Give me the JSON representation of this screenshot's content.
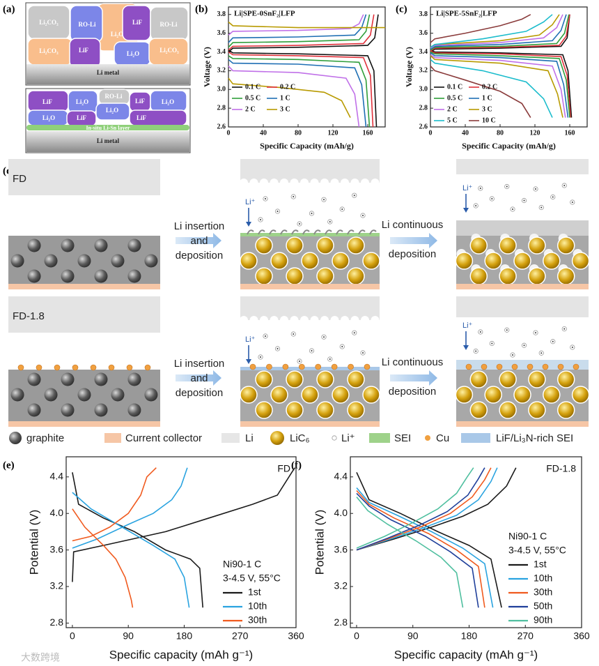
{
  "panel_labels": [
    "(a)",
    "(b)",
    "(c)",
    "(d)",
    "(e)",
    "(f)"
  ],
  "schematic_a": {
    "upper": {
      "grains": [
        "RO-Li",
        "Li₂O",
        "Li₂CO₃",
        "LiF",
        "RO-Li",
        "Li₂CO₃",
        "LiF",
        "Li₂O",
        "Li₂CO₃"
      ],
      "base": "Li metal"
    },
    "lower": {
      "grains": [
        "LiF",
        "Li₂O",
        "RO-Li",
        "LiF",
        "Li₂O",
        "Li₂O",
        "LiF",
        "Li₂O",
        "LiF"
      ],
      "layer": "In-situ Li-Sn layer",
      "base": "Li metal"
    }
  },
  "schematic_d": {
    "rows": [
      "FD",
      "FD-1.8"
    ],
    "step1": [
      "Li insertion",
      "and",
      "deposition"
    ],
    "step2": [
      "Li continuous",
      "deposition"
    ],
    "ion_label": "Li⁺",
    "legend": [
      "graphite",
      "Current collector",
      "Li",
      "LiC₆",
      "Li⁺",
      "SEI",
      "Cu",
      "LiF/Li₃N-rich SEI"
    ]
  },
  "chart_data": [
    {
      "type": "line",
      "title": "Li|SPE-0SnF₂|LFP",
      "xlabel": "Specific Capacity (mAh/g)",
      "ylabel": "Voltage (V)",
      "xlim": [
        0,
        180
      ],
      "ylim": [
        2.6,
        3.88
      ],
      "xticks": [
        0,
        40,
        80,
        120,
        160
      ],
      "yticks": [
        2.6,
        2.8,
        {
          "value": 3,
          "label": "3.0"
        },
        3.2,
        3.4,
        3.6,
        3.8
      ],
      "legend": "lower left",
      "series": [
        {
          "name": "0.1 C",
          "color": "#111111",
          "charge_x": [
            0,
            5,
            80,
            160,
            168,
            172
          ],
          "charge_values": [
            3.4,
            3.44,
            3.45,
            3.47,
            3.55,
            3.8
          ],
          "discharge_x": [
            0,
            5,
            80,
            160,
            167,
            170
          ],
          "discharge_values": [
            3.42,
            3.39,
            3.38,
            3.36,
            3.2,
            2.6
          ]
        },
        {
          "name": "0.2 C",
          "color": "#e0303a",
          "charge_x": [
            0,
            5,
            80,
            155,
            163,
            167
          ],
          "charge_values": [
            3.42,
            3.46,
            3.47,
            3.49,
            3.58,
            3.8
          ],
          "discharge_x": [
            0,
            5,
            80,
            155,
            163,
            166
          ],
          "discharge_values": [
            3.4,
            3.37,
            3.36,
            3.34,
            3.15,
            2.6
          ]
        },
        {
          "name": "0.5 C",
          "color": "#2f9e3a",
          "charge_x": [
            0,
            5,
            80,
            150,
            158,
            162
          ],
          "charge_values": [
            3.45,
            3.5,
            3.51,
            3.53,
            3.62,
            3.8
          ],
          "discharge_x": [
            0,
            5,
            80,
            150,
            158,
            162
          ],
          "discharge_values": [
            3.36,
            3.33,
            3.32,
            3.29,
            3.1,
            2.6
          ]
        },
        {
          "name": "1 C",
          "color": "#1f6fb4",
          "charge_x": [
            0,
            5,
            80,
            145,
            153,
            158
          ],
          "charge_values": [
            3.5,
            3.55,
            3.56,
            3.58,
            3.66,
            3.8
          ],
          "discharge_x": [
            0,
            5,
            80,
            145,
            153,
            158
          ],
          "discharge_values": [
            3.32,
            3.28,
            3.27,
            3.23,
            3.05,
            2.6
          ]
        },
        {
          "name": "2 C",
          "color": "#c070e8",
          "charge_x": [
            0,
            5,
            80,
            140,
            150,
            155
          ],
          "charge_values": [
            3.58,
            3.62,
            3.63,
            3.65,
            3.7,
            3.8
          ],
          "discharge_x": [
            0,
            5,
            80,
            135,
            145,
            150
          ],
          "discharge_values": [
            3.25,
            3.2,
            3.18,
            3.12,
            2.95,
            2.6
          ]
        },
        {
          "name": "3 C",
          "color": "#b89a00",
          "charge_x": [
            0,
            5,
            80,
            140,
            170,
            180
          ],
          "charge_values": [
            3.72,
            3.68,
            3.66,
            3.66,
            3.66,
            3.66
          ],
          "discharge_x": [
            0,
            5,
            60,
            110,
            130,
            140
          ],
          "discharge_values": [
            3.12,
            3.06,
            3.02,
            2.97,
            2.88,
            2.7
          ]
        }
      ]
    },
    {
      "type": "line",
      "title": "Li|SPE-5SnF₂|LFP",
      "xlabel": "Specific Capacity (mAh/g)",
      "ylabel": "Voltage (V)",
      "xlim": [
        0,
        180
      ],
      "ylim": [
        2.6,
        3.88
      ],
      "xticks": [
        0,
        40,
        80,
        120,
        160
      ],
      "yticks": [
        2.6,
        2.8,
        {
          "value": 3,
          "label": "3.0"
        },
        3.2,
        3.4,
        3.6,
        3.8
      ],
      "legend": "lower left",
      "series": [
        {
          "name": "0.1 C",
          "color": "#111111",
          "charge_x": [
            0,
            5,
            80,
            150,
            157,
            160
          ],
          "charge_values": [
            3.4,
            3.43,
            3.44,
            3.46,
            3.55,
            3.8
          ],
          "discharge_x": [
            0,
            5,
            80,
            152,
            158,
            162
          ],
          "discharge_values": [
            3.42,
            3.4,
            3.39,
            3.37,
            3.2,
            2.7
          ]
        },
        {
          "name": "0.2 C",
          "color": "#e0303a",
          "charge_x": [
            0,
            5,
            80,
            148,
            156,
            160
          ],
          "charge_values": [
            3.41,
            3.44,
            3.45,
            3.47,
            3.57,
            3.8
          ],
          "discharge_x": [
            0,
            5,
            80,
            150,
            157,
            161
          ],
          "discharge_values": [
            3.41,
            3.39,
            3.38,
            3.35,
            3.15,
            2.7
          ]
        },
        {
          "name": "0.5 C",
          "color": "#2f9e3a",
          "charge_x": [
            0,
            5,
            80,
            145,
            154,
            159
          ],
          "charge_values": [
            3.42,
            3.45,
            3.46,
            3.49,
            3.6,
            3.8
          ],
          "discharge_x": [
            0,
            5,
            80,
            148,
            156,
            160
          ],
          "discharge_values": [
            3.4,
            3.38,
            3.36,
            3.33,
            3.1,
            2.7
          ]
        },
        {
          "name": "1 C",
          "color": "#1f6fb4",
          "charge_x": [
            0,
            5,
            80,
            140,
            150,
            156
          ],
          "charge_values": [
            3.43,
            3.46,
            3.48,
            3.52,
            3.63,
            3.8
          ],
          "discharge_x": [
            0,
            5,
            80,
            145,
            153,
            158
          ],
          "discharge_values": [
            3.39,
            3.36,
            3.34,
            3.3,
            3.05,
            2.7
          ]
        },
        {
          "name": "2 C",
          "color": "#c070e8",
          "charge_x": [
            0,
            5,
            80,
            130,
            145,
            152
          ],
          "charge_values": [
            3.44,
            3.47,
            3.5,
            3.55,
            3.66,
            3.8
          ],
          "discharge_x": [
            0,
            5,
            80,
            140,
            150,
            155
          ],
          "discharge_values": [
            3.37,
            3.34,
            3.31,
            3.25,
            3.0,
            2.7
          ]
        },
        {
          "name": "3 C",
          "color": "#b89a00",
          "charge_x": [
            0,
            5,
            80,
            125,
            140,
            148
          ],
          "charge_values": [
            3.45,
            3.48,
            3.52,
            3.58,
            3.69,
            3.8
          ],
          "discharge_x": [
            0,
            5,
            80,
            135,
            146,
            152
          ],
          "discharge_values": [
            3.36,
            3.32,
            3.28,
            3.2,
            2.95,
            2.7
          ]
        },
        {
          "name": "5 C",
          "color": "#1bbccc",
          "charge_x": [
            0,
            5,
            60,
            110,
            130,
            140
          ],
          "charge_values": [
            3.45,
            3.48,
            3.54,
            3.62,
            3.72,
            3.8
          ],
          "discharge_x": [
            0,
            5,
            60,
            110,
            130,
            140
          ],
          "discharge_values": [
            3.32,
            3.28,
            3.2,
            3.08,
            2.9,
            2.7
          ]
        },
        {
          "name": "10 C",
          "color": "#8a3b3b",
          "charge_x": [
            0,
            5,
            40,
            80,
            105,
            115
          ],
          "charge_values": [
            3.5,
            3.54,
            3.6,
            3.68,
            3.75,
            3.8
          ],
          "discharge_x": [
            0,
            5,
            40,
            80,
            105,
            115
          ],
          "discharge_values": [
            3.25,
            3.2,
            3.1,
            2.98,
            2.85,
            2.7
          ]
        }
      ]
    },
    {
      "type": "line",
      "label": "FD",
      "conditions": [
        "Ni90-1 C",
        "3-4.5 V, 55°C"
      ],
      "xlabel": "Specific capacity (mAh g⁻¹)",
      "ylabel": "Potential (V)",
      "xlim": [
        -10,
        360
      ],
      "ylim": [
        2.75,
        4.62
      ],
      "xticks": [
        0,
        90,
        180,
        270,
        360
      ],
      "yticks": [
        2.8,
        3.2,
        3.6,
        {
          "value": 4,
          "label": "4.0"
        },
        4.4
      ],
      "legend": "lower right",
      "series": [
        {
          "name": "1st",
          "color": "#1a1a1a",
          "charge_x": [
            0,
            2,
            50,
            150,
            220,
            290,
            330,
            358
          ],
          "charge_values": [
            3.25,
            3.58,
            3.65,
            3.8,
            3.95,
            4.1,
            4.2,
            4.5
          ],
          "discharge_x": [
            0,
            10,
            50,
            100,
            150,
            190,
            205,
            210
          ],
          "discharge_values": [
            4.45,
            4.1,
            3.95,
            3.8,
            3.6,
            3.5,
            3.4,
            2.97
          ]
        },
        {
          "name": "10th",
          "color": "#29a3e0",
          "charge_x": [
            0,
            40,
            90,
            130,
            160,
            175,
            185
          ],
          "charge_values": [
            3.62,
            3.72,
            3.88,
            4.0,
            4.15,
            4.3,
            4.5
          ],
          "discharge_x": [
            0,
            30,
            80,
            130,
            165,
            180,
            188
          ],
          "discharge_values": [
            4.23,
            4.05,
            3.85,
            3.65,
            3.5,
            3.3,
            2.97
          ]
        },
        {
          "name": "30th",
          "color": "#f05a1e",
          "charge_x": [
            0,
            30,
            60,
            90,
            110,
            120,
            135
          ],
          "charge_values": [
            3.7,
            3.75,
            3.85,
            4.0,
            4.2,
            4.4,
            4.5
          ],
          "discharge_x": [
            0,
            20,
            50,
            70,
            85,
            95,
            97
          ],
          "discharge_values": [
            4.05,
            3.85,
            3.65,
            3.5,
            3.3,
            3.05,
            2.97
          ]
        }
      ]
    },
    {
      "type": "line",
      "label": "FD-1.8",
      "conditions": [
        "Ni90-1 C",
        "3-4.5 V, 55°C"
      ],
      "xlabel": "Specific capacity (mAh g⁻¹)",
      "ylabel": "Potential (V)",
      "xlim": [
        -10,
        360
      ],
      "ylim": [
        2.75,
        4.62
      ],
      "xticks": [
        0,
        90,
        180,
        270,
        360
      ],
      "yticks": [
        2.8,
        3.2,
        3.6,
        {
          "value": 4,
          "label": "4.0"
        },
        4.4
      ],
      "legend": "lower right",
      "series": [
        {
          "name": "1st",
          "color": "#1a1a1a",
          "charge_x": [
            0,
            60,
            120,
            170,
            210,
            240,
            255
          ],
          "charge_values": [
            3.6,
            3.72,
            3.85,
            3.97,
            4.1,
            4.3,
            4.5
          ],
          "discharge_x": [
            0,
            20,
            70,
            130,
            180,
            215,
            232
          ],
          "discharge_values": [
            4.45,
            4.15,
            4.0,
            3.8,
            3.65,
            3.5,
            2.97
          ]
        },
        {
          "name": "10th",
          "color": "#29a3e0",
          "charge_x": [
            0,
            55,
            110,
            160,
            195,
            215,
            225
          ],
          "charge_values": [
            3.6,
            3.72,
            3.85,
            3.98,
            4.15,
            4.35,
            4.5
          ],
          "discharge_x": [
            0,
            20,
            65,
            120,
            170,
            205,
            218
          ],
          "discharge_values": [
            4.28,
            4.12,
            3.98,
            3.8,
            3.62,
            3.45,
            2.97
          ]
        },
        {
          "name": "30th",
          "color": "#f05a1e",
          "charge_x": [
            0,
            50,
            105,
            150,
            185,
            205,
            215
          ],
          "charge_values": [
            3.6,
            3.72,
            3.86,
            4.0,
            4.18,
            4.37,
            4.5
          ],
          "discharge_x": [
            0,
            20,
            60,
            115,
            160,
            195,
            205
          ],
          "discharge_values": [
            4.25,
            4.1,
            3.95,
            3.78,
            3.6,
            3.42,
            2.97
          ]
        },
        {
          "name": "50th",
          "color": "#1f3f9a",
          "charge_x": [
            0,
            50,
            100,
            145,
            178,
            195,
            205
          ],
          "charge_values": [
            3.6,
            3.73,
            3.87,
            4.02,
            4.2,
            4.38,
            4.5
          ],
          "discharge_x": [
            0,
            20,
            55,
            110,
            150,
            185,
            195
          ],
          "discharge_values": [
            4.22,
            4.08,
            3.93,
            3.75,
            3.58,
            3.4,
            2.97
          ]
        },
        {
          "name": "90th",
          "color": "#4fbf9f",
          "charge_x": [
            0,
            45,
            90,
            130,
            160,
            177,
            187
          ],
          "charge_values": [
            3.62,
            3.75,
            3.9,
            4.05,
            4.22,
            4.4,
            4.5
          ],
          "discharge_x": [
            0,
            18,
            50,
            95,
            135,
            160,
            170
          ],
          "discharge_values": [
            4.18,
            4.03,
            3.88,
            3.7,
            3.52,
            3.35,
            2.97
          ]
        }
      ]
    }
  ],
  "watermark": "大数跨境"
}
